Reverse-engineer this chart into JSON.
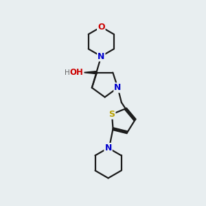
{
  "background_color": "#e8eef0",
  "atom_colors": {
    "C": "#1a1a1a",
    "N": "#0000cd",
    "O": "#cc0000",
    "S": "#b8a000",
    "H": "#555555"
  },
  "bond_color": "#1a1a1a",
  "bond_width": 1.6,
  "figsize": [
    3.0,
    3.0
  ],
  "dpi": 100,
  "xlim": [
    1.0,
    5.5
  ],
  "ylim": [
    0.3,
    5.8
  ]
}
